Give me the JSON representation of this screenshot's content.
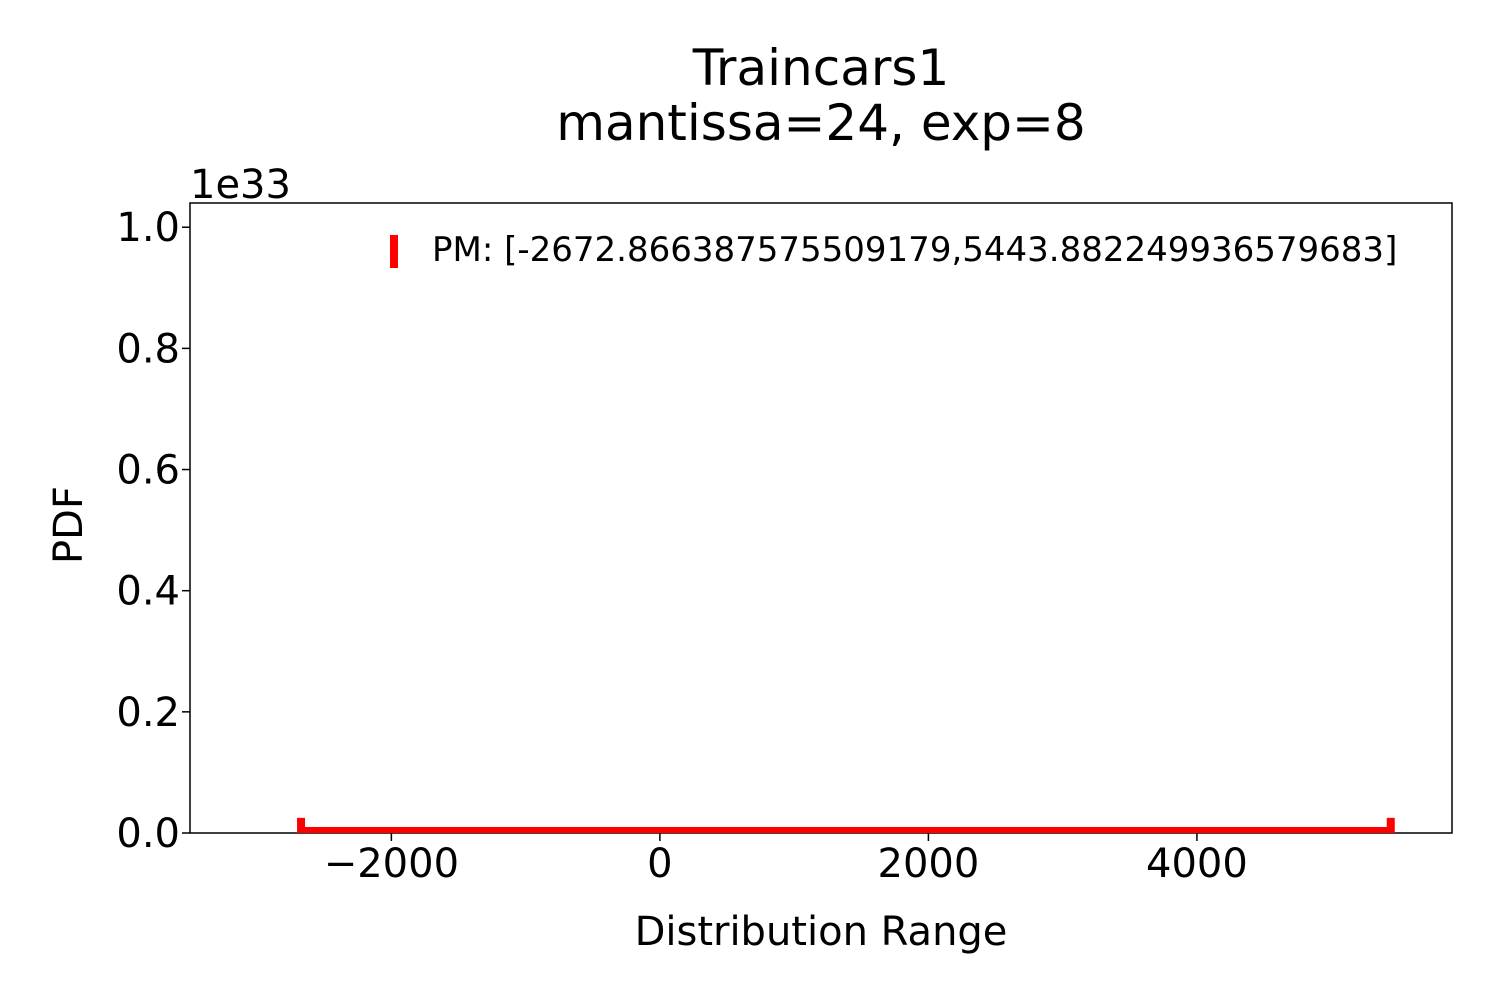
{
  "chart_data": {
    "type": "line",
    "title": [
      "Traincars1",
      "mantissa=24, exp=8"
    ],
    "xlabel": "Distribution Range",
    "ylabel": "PDF",
    "y_offset_label": "1e33",
    "xlim": [
      -3500,
      5900
    ],
    "ylim": [
      0,
      1.04
    ],
    "x_ticks": [
      -2000,
      0,
      2000,
      4000
    ],
    "x_tick_labels": [
      "−2000",
      "0",
      "2000",
      "4000"
    ],
    "y_ticks": [
      0.0,
      0.2,
      0.4,
      0.6,
      0.8,
      1.0
    ],
    "y_tick_labels": [
      "0.0",
      "0.2",
      "0.4",
      "0.6",
      "0.8",
      "1.0"
    ],
    "grid": false,
    "legend_position": "top-right",
    "series": [
      {
        "name": "PM: [-2672.866387575509179,5443.882249936579683]",
        "color": "#ff0000",
        "x_min": -2672.866387575509,
        "x_max": 5443.88224993658,
        "y_level": 0.0,
        "end_marker_height": 0.025
      }
    ]
  }
}
